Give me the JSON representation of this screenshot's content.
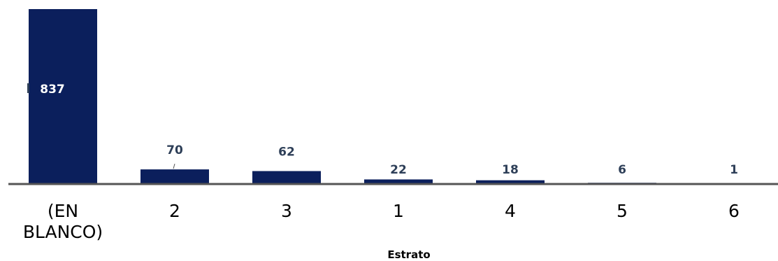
{
  "chart_data": {
    "type": "bar",
    "title": "",
    "xlabel": "Estrato",
    "ylabel": "",
    "categories": [
      "(EN BLANCO)",
      "2",
      "3",
      "1",
      "4",
      "5",
      "6"
    ],
    "values": [
      837,
      70,
      62,
      22,
      18,
      6,
      1
    ],
    "value_labels": [
      "837",
      "70",
      "62",
      "22",
      "18",
      "6",
      "1"
    ],
    "ylim": [
      0,
      837
    ],
    "grid": false,
    "legend": "none",
    "colors": {
      "bar": "#0b1f5c",
      "value_label": "#2e3f58",
      "value_label_inside": "#ffffff",
      "axis": "#555555"
    }
  }
}
